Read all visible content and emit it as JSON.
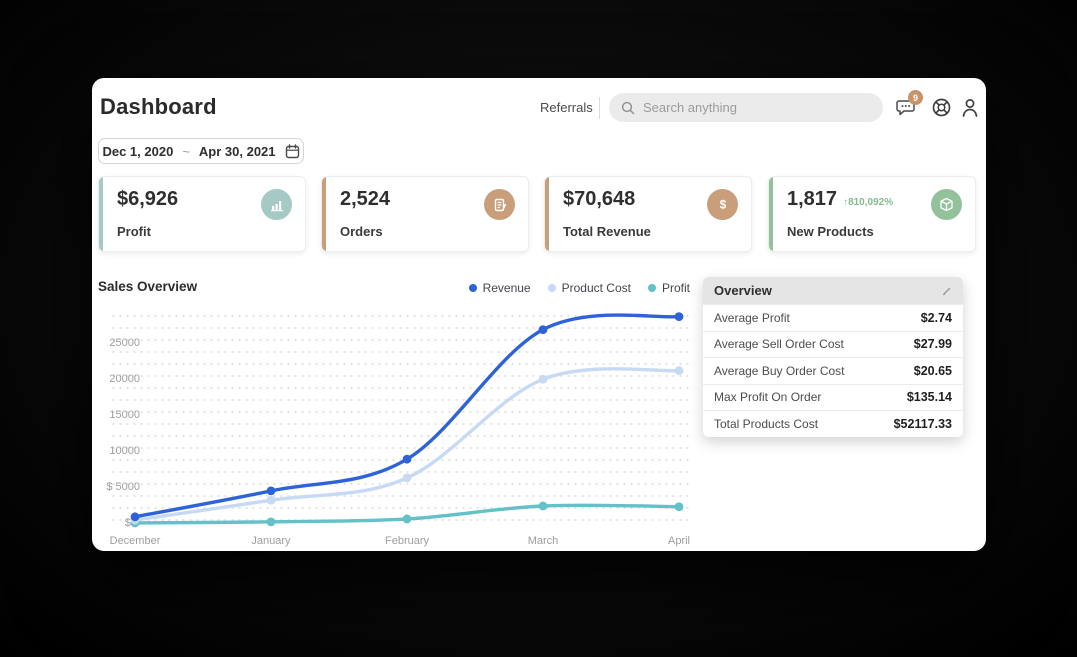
{
  "header": {
    "title": "Dashboard",
    "referrals_label": "Referrals",
    "search": {
      "placeholder": "Search anything"
    },
    "notifications_badge": "9"
  },
  "date_range": {
    "start": "Dec 1, 2020",
    "separator": "~",
    "end": "Apr 30, 2021"
  },
  "stat_cards": [
    {
      "value": "$6,926",
      "label": "Profit",
      "accent": "#a5c9c5",
      "icon": "bar-chart"
    },
    {
      "value": "2,524",
      "label": "Orders",
      "accent": "#c89e7b",
      "icon": "order-list"
    },
    {
      "value": "$70,648",
      "label": "Total Revenue",
      "accent": "#c89e7b",
      "icon": "dollar"
    },
    {
      "value": "1,817",
      "label": "New Products",
      "accent": "#93c29a",
      "icon": "package",
      "delta": "↑810,092%"
    }
  ],
  "sales_overview": {
    "title": "Sales Overview",
    "legend": [
      {
        "label": "Revenue",
        "color": "#2e63d8"
      },
      {
        "label": "Product Cost",
        "color": "#c7daf4"
      },
      {
        "label": "Profit",
        "color": "#63c1c7"
      }
    ]
  },
  "chart_data": {
    "type": "line",
    "x": [
      "December",
      "January",
      "February",
      "March",
      "April"
    ],
    "series": [
      {
        "name": "Revenue",
        "color": "#2e63d8",
        "values": [
          1000,
          4600,
          9000,
          27000,
          28800
        ]
      },
      {
        "name": "Product Cost",
        "color": "#c7daf4",
        "values": [
          550,
          3300,
          6400,
          20100,
          21300
        ]
      },
      {
        "name": "Profit",
        "color": "#63c1c7",
        "values": [
          150,
          300,
          700,
          2500,
          2400
        ]
      }
    ],
    "yticks": [
      25000,
      20000,
      15000,
      10000,
      5000,
      0
    ],
    "ylabels": [
      "25000",
      "20000",
      "15000",
      "10000",
      "$ 5000",
      "$ 0"
    ],
    "ylim": [
      0,
      30000
    ],
    "grid": "dotted",
    "legend_position": "top-right",
    "title": "Sales Overview"
  },
  "overview_panel": {
    "title": "Overview",
    "rows": [
      {
        "label": "Average Profit",
        "value": "$2.74"
      },
      {
        "label": "Average Sell Order Cost",
        "value": "$27.99"
      },
      {
        "label": "Average Buy Order Cost",
        "value": "$20.65"
      },
      {
        "label": "Max Profit On Order",
        "value": "$135.14"
      },
      {
        "label": "Total Products Cost",
        "value": "$52117.33"
      }
    ]
  }
}
